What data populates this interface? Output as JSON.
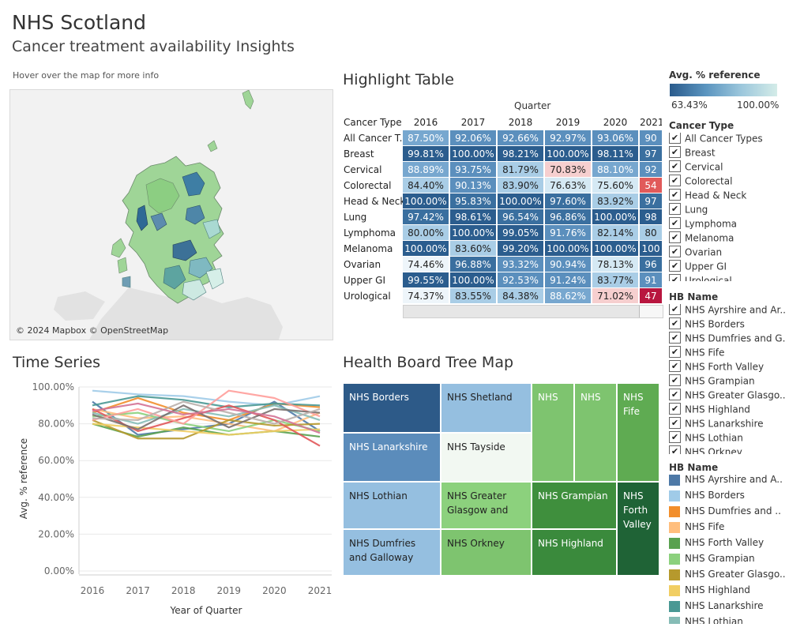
{
  "header": {
    "title": "NHS Scotland",
    "subtitle": "Cancer treatment availability Insights",
    "map_hint": "Hover over the map for more info"
  },
  "map": {
    "credit": "© 2024 Mapbox © OpenStreetMap"
  },
  "highlight_table": {
    "title": "Highlight Table",
    "column_group": "Quarter",
    "row_header": "Cancer Type",
    "columns": [
      "2016",
      "2017",
      "2018",
      "2019",
      "2020",
      "2021"
    ],
    "rows": [
      {
        "label": "All Cancer T..",
        "values": [
          "87.50%",
          "92.06%",
          "92.66%",
          "92.97%",
          "93.06%",
          "90"
        ]
      },
      {
        "label": "Breast",
        "values": [
          "99.81%",
          "100.00%",
          "98.21%",
          "100.00%",
          "98.11%",
          "97"
        ]
      },
      {
        "label": "Cervical",
        "values": [
          "88.89%",
          "93.75%",
          "81.79%",
          "70.83%",
          "88.10%",
          "92"
        ]
      },
      {
        "label": "Colorectal",
        "values": [
          "84.40%",
          "90.13%",
          "83.90%",
          "76.63%",
          "75.60%",
          "54"
        ]
      },
      {
        "label": "Head & Neck",
        "values": [
          "100.00%",
          "95.83%",
          "100.00%",
          "97.60%",
          "83.92%",
          "97"
        ]
      },
      {
        "label": "Lung",
        "values": [
          "97.42%",
          "98.61%",
          "96.54%",
          "96.86%",
          "100.00%",
          "98"
        ]
      },
      {
        "label": "Lymphoma",
        "values": [
          "80.00%",
          "100.00%",
          "99.05%",
          "91.76%",
          "82.14%",
          "80"
        ]
      },
      {
        "label": "Melanoma",
        "values": [
          "100.00%",
          "83.60%",
          "99.20%",
          "100.00%",
          "100.00%",
          "100"
        ]
      },
      {
        "label": "Ovarian",
        "values": [
          "74.46%",
          "96.88%",
          "93.32%",
          "90.94%",
          "78.13%",
          "96"
        ]
      },
      {
        "label": "Upper GI",
        "values": [
          "99.55%",
          "100.00%",
          "92.53%",
          "91.24%",
          "83.77%",
          "91"
        ]
      },
      {
        "label": "Urological",
        "values": [
          "74.37%",
          "83.55%",
          "84.38%",
          "88.62%",
          "71.02%",
          "47"
        ]
      }
    ]
  },
  "legend": {
    "title": "Avg. % reference",
    "min": "63.43%",
    "max": "100.00%"
  },
  "cancer_filter": {
    "title": "Cancer Type",
    "items": [
      "All Cancer Types",
      "Breast",
      "Cervical",
      "Colorectal",
      "Head & Neck",
      "Lung",
      "Lymphoma",
      "Melanoma",
      "Ovarian",
      "Upper GI",
      "Urological"
    ]
  },
  "hb_filter": {
    "title": "HB Name",
    "items": [
      "NHS Ayrshire and Ar..",
      "NHS Borders",
      "NHS Dumfries and G..",
      "NHS Fife",
      "NHS Forth Valley",
      "NHS Grampian",
      "NHS Greater Glasgo..",
      "NHS Highland",
      "NHS Lanarkshire",
      "NHS Lothian",
      "NHS Orkney"
    ]
  },
  "hb_legend": {
    "title": "HB Name",
    "items": [
      {
        "label": "NHS Ayrshire and A..",
        "color": "#4e79a7"
      },
      {
        "label": "NHS Borders",
        "color": "#a0cbe8"
      },
      {
        "label": "NHS Dumfries and ..",
        "color": "#f28e2b"
      },
      {
        "label": "NHS Fife",
        "color": "#ffbe7d"
      },
      {
        "label": "NHS Forth Valley",
        "color": "#59a14f"
      },
      {
        "label": "NHS Grampian",
        "color": "#8cd17d"
      },
      {
        "label": "NHS Greater Glasgo..",
        "color": "#b6992d"
      },
      {
        "label": "NHS Highland",
        "color": "#f1ce63"
      },
      {
        "label": "NHS Lanarkshire",
        "color": "#499894"
      },
      {
        "label": "NHS Lothian",
        "color": "#86bcb6"
      }
    ]
  },
  "time_series": {
    "title": "Time Series",
    "xlabel": "Year of Quarter",
    "ylabel": "Avg. % reference"
  },
  "tree_map": {
    "title": "Health Board Tree Map",
    "tiles": [
      "NHS Borders",
      "NHS Shetland",
      "NHS",
      "NHS",
      "NHS Fife",
      "NHS Lanarkshire",
      "NHS Tayside",
      "NHS Lothian",
      "NHS Greater Glasgow and",
      "NHS Grampian",
      "NHS Forth Valley",
      "NHS Dumfries and Galloway",
      "NHS Orkney",
      "NHS Highland"
    ]
  },
  "chart_data": {
    "type": "line",
    "title": "Time Series",
    "xlabel": "Year of Quarter",
    "ylabel": "Avg. % reference",
    "x": [
      2016,
      2017,
      2018,
      2019,
      2020,
      2021
    ],
    "ylim": [
      0,
      100
    ],
    "yticks": [
      "0.00%",
      "20.00%",
      "40.00%",
      "60.00%",
      "80.00%",
      "100.00%"
    ],
    "grid": true,
    "series": [
      {
        "color": "#4e79a7",
        "values": [
          92,
          74,
          77,
          80,
          92,
          76
        ]
      },
      {
        "color": "#a0cbe8",
        "values": [
          98,
          96,
          95,
          92,
          90,
          95
        ]
      },
      {
        "color": "#f28e2b",
        "values": [
          86,
          94,
          86,
          82,
          91,
          89
        ]
      },
      {
        "color": "#ffbe7d",
        "values": [
          88,
          83,
          84,
          80,
          76,
          86
        ]
      },
      {
        "color": "#59a14f",
        "values": [
          80,
          73,
          78,
          74,
          76,
          73
        ]
      },
      {
        "color": "#8cd17d",
        "values": [
          84,
          86,
          80,
          76,
          82,
          76
        ]
      },
      {
        "color": "#b6992d",
        "values": [
          82,
          72,
          72,
          82,
          79,
          80
        ]
      },
      {
        "color": "#f1ce63",
        "values": [
          80,
          78,
          76,
          74,
          76,
          77
        ]
      },
      {
        "color": "#499894",
        "values": [
          90,
          95,
          93,
          89,
          91,
          90
        ]
      },
      {
        "color": "#86bcb6",
        "values": [
          86,
          80,
          88,
          84,
          90,
          82
        ]
      },
      {
        "color": "#e15759",
        "values": [
          88,
          76,
          83,
          90,
          82,
          68
        ]
      },
      {
        "color": "#ff9d9a",
        "values": [
          82,
          88,
          80,
          98,
          94,
          84
        ]
      },
      {
        "color": "#79706e",
        "values": [
          85,
          77,
          90,
          78,
          88,
          86
        ]
      },
      {
        "color": "#bab0ac",
        "values": [
          83,
          82,
          92,
          86,
          80,
          88
        ]
      },
      {
        "color": "#d37295",
        "values": [
          87,
          91,
          85,
          88,
          84,
          75
        ]
      }
    ]
  }
}
